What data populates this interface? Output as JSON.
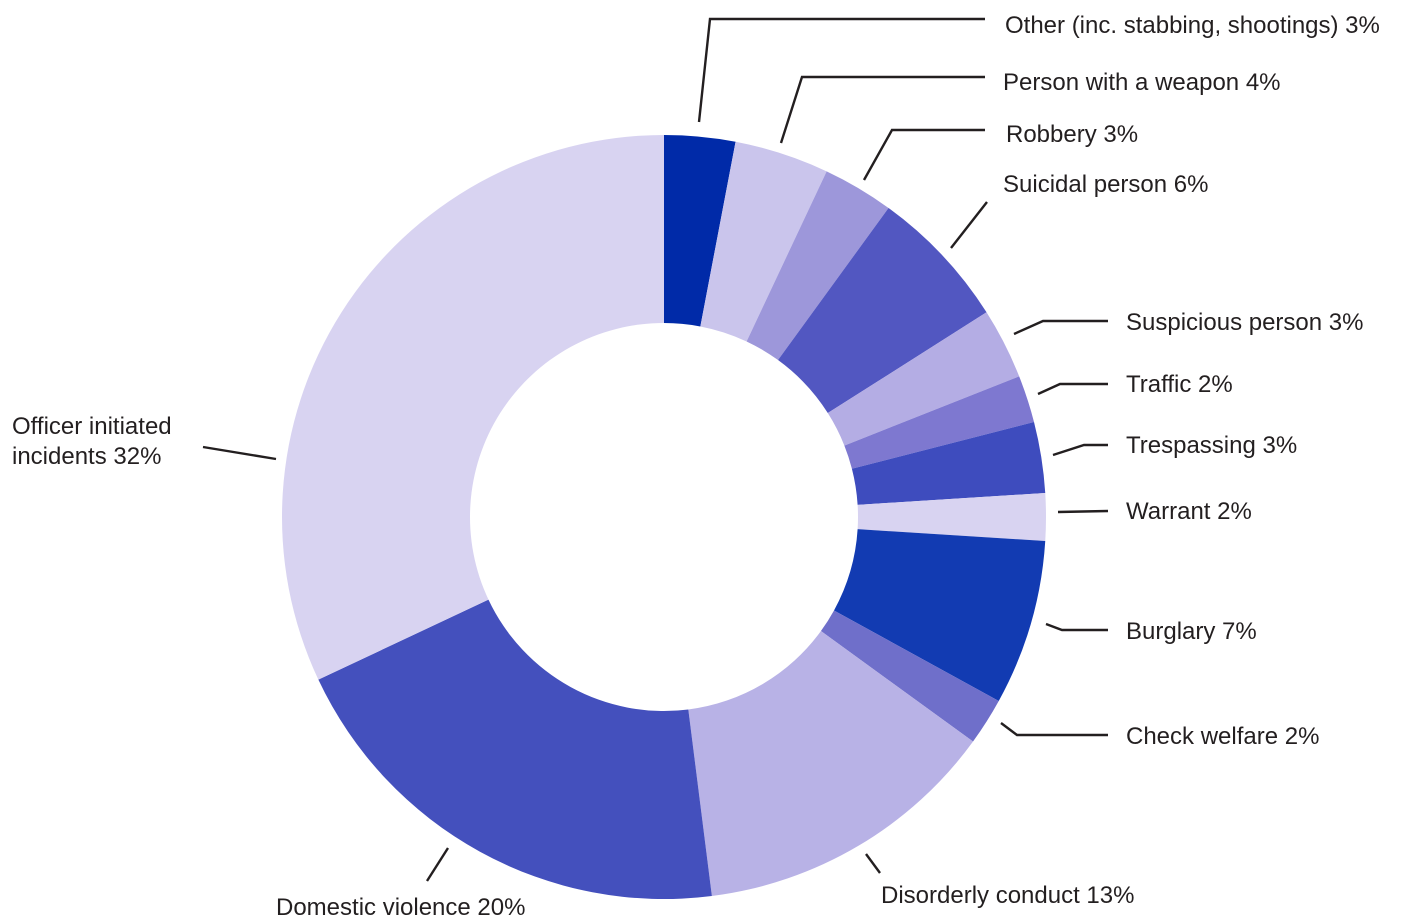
{
  "chart_data": {
    "type": "pie",
    "variant": "donut",
    "title": "",
    "legend": "none",
    "slices": [
      {
        "label": "Other (inc. stabbing, shootings) 3%",
        "name": "Other (inc. stabbing, shootings)",
        "value": 3,
        "color": "#002aa8"
      },
      {
        "label": "Person with a weapon 4%",
        "name": "Person with a weapon",
        "value": 4,
        "color": "#cac5ec"
      },
      {
        "label": "Robbery 3%",
        "name": "Robbery",
        "value": 3,
        "color": "#9d97da"
      },
      {
        "label": "Suicidal person 6%",
        "name": "Suicidal person",
        "value": 6,
        "color": "#5257c1"
      },
      {
        "label": "Suspicious person 3%",
        "name": "Suspicious person",
        "value": 3,
        "color": "#b4ade4"
      },
      {
        "label": "Traffic 2%",
        "name": "Traffic",
        "value": 2,
        "color": "#7e78d0"
      },
      {
        "label": "Trespassing 3%",
        "name": "Trespassing",
        "value": 3,
        "color": "#3e4cbe"
      },
      {
        "label": "Warrant 2%",
        "name": "Warrant",
        "value": 2,
        "color": "#d8d3f1"
      },
      {
        "label": "Burglary 7%",
        "name": "Burglary",
        "value": 7,
        "color": "#123bb2"
      },
      {
        "label": "Check welfare 2%",
        "name": "Check welfare",
        "value": 2,
        "color": "#6f6fca"
      },
      {
        "label": "Disorderly conduct 13%",
        "name": "Disorderly conduct",
        "value": 13,
        "color": "#b8b2e6"
      },
      {
        "label": "Domestic violence 20%",
        "name": "Domestic violence",
        "value": 20,
        "color": "#4450bd"
      },
      {
        "label": "Officer initiated\nincidents 32%",
        "name": "Officer initiated incidents",
        "value": 32,
        "color": "#d8d3f1"
      }
    ]
  }
}
